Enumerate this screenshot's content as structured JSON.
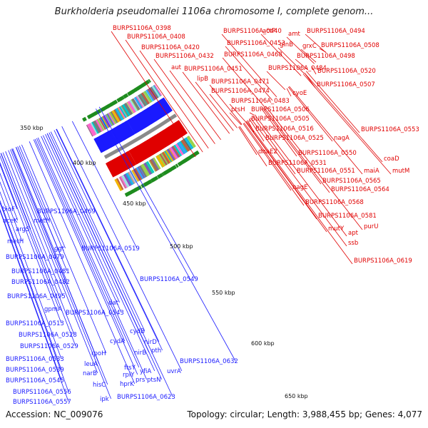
{
  "title": "Burkholderia pseudomallei 1106a chromosome I, complete genom...",
  "footer": {
    "accession": "Accession: NC_009076",
    "topology": "Topology: circular; Length: 3,988,455 bp; Genes: 4,077"
  },
  "colors": {
    "forward": "#e00000",
    "reverse": "#1a1aff",
    "backbone": "#8a8a8a",
    "gc": "#1e8c1e"
  },
  "scale_labels": [
    "350 kbp",
    "400 kbp",
    "450 kbp",
    "500 kbp",
    "550 kbp",
    "600 kbp",
    "650 kbp"
  ],
  "forward_genes": [
    "BURPS1106A_0398",
    "BURPS1106A_0440",
    "actP",
    "amt",
    "BURPS1106A_0494",
    "BURPS1106A_0408",
    "BURPS1106A_0453",
    "glnB",
    "grxC",
    "BURPS1106A_0508",
    "BURPS1106A_0420",
    "BURPS1106A_0468",
    "BURPS1106A_0498",
    "BURPS1106A_0432",
    "aut",
    "BURPS1106A_0451",
    "BURPS1106A_0484",
    "BURPS1106A_0520",
    "lipB",
    "BURPS1106A_0471",
    "BURPS1106A_0507",
    "BURPS1106A_0474",
    "cyoE",
    "BURPS1106A_0483",
    "ptsH",
    "BURPS1106A_0506",
    "BURPS1106A_0505",
    "BURPS1106A_0516",
    "BURPS1106A_0553",
    "BURPS1106A_0525",
    "nagA",
    "dnaE2",
    "BURPS1106A_0550",
    "coaD",
    "BURPS1106A_0531",
    "BURPS1106A_0551",
    "maiA",
    "mutM",
    "BURPS1106A_0565",
    "nagE",
    "BURPS1106A_0564",
    "BURPS1106A_0568",
    "BURPS1106A_0581",
    "mutY",
    "apt",
    "purU",
    "ssb",
    "BURPS1106A_0619"
  ],
  "reverse_genes": [
    "bioF",
    "BURPS1106A_0469",
    "aceK",
    "metH",
    "argS",
    "metH",
    "ggt",
    "BURPS1106A_0479",
    "BURPS1106A_0519",
    "BURPS1106A_0481",
    "BURPS1106A_0482",
    "BURPS1106A_0549",
    "BURPS1106A_0495",
    "dat",
    "gpmA",
    "BURPS1106A_0543",
    "BURPS1106A_0513",
    "BURPS1106A_0528",
    "cydB",
    "BURPS1106A_0529",
    "cydA",
    "nirD",
    "rpoH",
    "nirB",
    "pth",
    "BURPS1106A_0533",
    "leuA",
    "ftsY",
    "prs",
    "ptsN",
    "BURPS1106A_0539",
    "narB",
    "rplY",
    "yfiA",
    "uvrA",
    "BURPS1106A_0632",
    "BURPS1106A_0545",
    "hisC",
    "hprK",
    "BURPS1106A_0556",
    "BURPS1106A_0557",
    "ipk",
    "BURPS1106A_0623"
  ]
}
